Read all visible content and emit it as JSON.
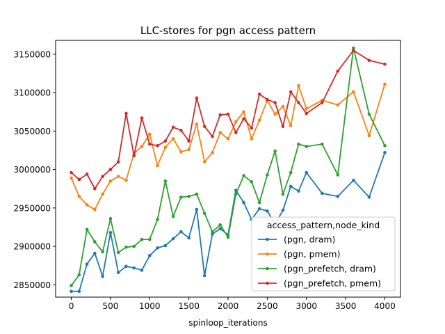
{
  "chart_data": {
    "type": "line",
    "title": "LLC-stores for pgn access pattern",
    "xlabel": "spinloop_iterations",
    "ylabel": "",
    "xlim": [
      -200,
      4200
    ],
    "ylim": [
      2834000,
      3168000
    ],
    "xticks": [
      0,
      500,
      1000,
      1500,
      2000,
      2500,
      3000,
      3500,
      4000
    ],
    "xtick_labels": [
      "0",
      "500",
      "1000",
      "1500",
      "2000",
      "2500",
      "3000",
      "3500",
      "4000"
    ],
    "yticks": [
      2850000,
      2900000,
      2950000,
      3000000,
      3050000,
      3100000,
      3150000
    ],
    "ytick_labels": [
      "2850000",
      "2900000",
      "2950000",
      "3000000",
      "3050000",
      "3100000",
      "3150000"
    ],
    "grid": false,
    "legend": {
      "title": "access_pattern,node_kind",
      "placement": "lower-right"
    },
    "x": [
      0,
      100,
      200,
      300,
      400,
      500,
      600,
      700,
      800,
      900,
      1000,
      1100,
      1200,
      1300,
      1400,
      1500,
      1600,
      1700,
      1800,
      1900,
      2000,
      2100,
      2200,
      2300,
      2400,
      2500,
      2600,
      2700,
      2800,
      2900,
      3000,
      3200,
      3400,
      3600,
      3800,
      4000
    ],
    "series": [
      {
        "name": "(pgn, dram)",
        "color": "#1f77b4",
        "values": [
          2841500,
          2841500,
          2877000,
          2891000,
          2861000,
          2918000,
          2866000,
          2874000,
          2872000,
          2869000,
          2888000,
          2898000,
          2901000,
          2910000,
          2919000,
          2911000,
          2948000,
          2862000,
          2916000,
          2923000,
          2915000,
          2973000,
          2957000,
          2935000,
          2949000,
          2946000,
          2929000,
          2947000,
          2978000,
          2972000,
          2996000,
          2969000,
          2965000,
          2986000,
          2964000,
          3022000
        ]
      },
      {
        "name": "(pgn, pmem)",
        "color": "#ff7f0e",
        "values": [
          2989000,
          2965000,
          2954000,
          2948000,
          2968000,
          2985000,
          2991000,
          2986000,
          3021000,
          3030000,
          3046000,
          3005000,
          3029000,
          3040000,
          3023000,
          3026000,
          3059000,
          3010000,
          3022000,
          3048000,
          3040000,
          3062000,
          3075000,
          3040000,
          3064000,
          3090000,
          3072000,
          3082000,
          3057000,
          3109000,
          3079000,
          3090000,
          3084000,
          3101000,
          3044000,
          3111000
        ]
      },
      {
        "name": "(pgn_prefetch, dram)",
        "color": "#2ca02c",
        "values": [
          2849000,
          2863000,
          2922000,
          2906000,
          2893000,
          2936000,
          2892000,
          2899000,
          2900000,
          2909000,
          2909000,
          2935000,
          2985000,
          2939000,
          2964000,
          2965000,
          2968000,
          2943000,
          2919000,
          2928000,
          2912000,
          2968000,
          2992000,
          2984000,
          2957000,
          2993000,
          3024000,
          2968000,
          2996000,
          3033000,
          3030000,
          3033000,
          2993000,
          3158000,
          3072000,
          3031000
        ]
      },
      {
        "name": "(pgn_prefetch, pmem)",
        "color": "#d62728",
        "values": [
          2996000,
          2987000,
          2994000,
          2975000,
          2991000,
          3000000,
          3010000,
          3073000,
          3018000,
          3067000,
          3033000,
          3031000,
          3037000,
          3055000,
          3051000,
          3037000,
          3093000,
          3056000,
          3043000,
          3071000,
          3072000,
          3048000,
          3066000,
          3054000,
          3098000,
          3091000,
          3087000,
          3056000,
          3101000,
          3087000,
          3073000,
          3087000,
          3128000,
          3155000,
          3142000,
          3137000
        ]
      }
    ]
  }
}
